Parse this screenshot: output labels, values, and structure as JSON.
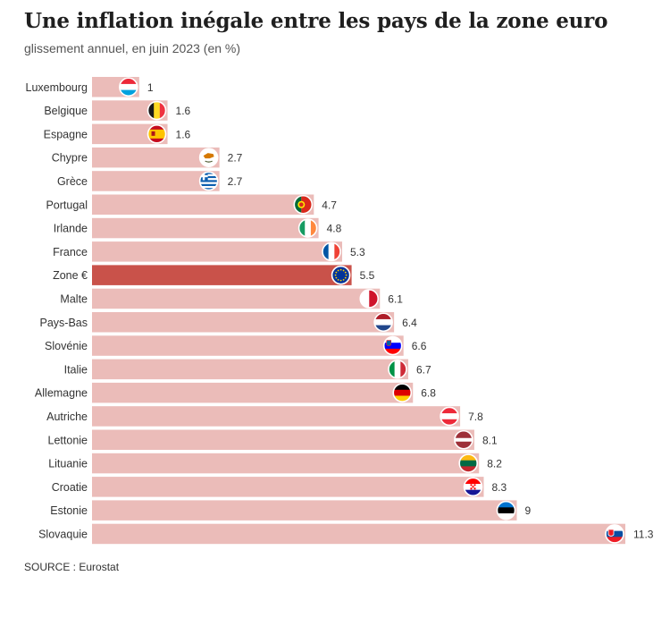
{
  "title": "Une inflation inégale entre les pays de la zone euro",
  "subtitle": "glissement annuel, en juin 2023 (en %)",
  "source": "SOURCE : Eurostat",
  "colors": {
    "bar": "#ebbcb9",
    "highlight_bar": "#c9524a",
    "text": "#333333"
  },
  "chart_data": {
    "type": "bar",
    "orientation": "horizontal",
    "title": "Une inflation inégale entre les pays de la zone euro",
    "subtitle": "glissement annuel, en juin 2023 (en %)",
    "xlim": [
      0,
      11.3
    ],
    "grid": false,
    "highlight": "Zone €",
    "categories": [
      "Luxembourg",
      "Belgique",
      "Espagne",
      "Chypre",
      "Grèce",
      "Portugal",
      "Irlande",
      "France",
      "Zone €",
      "Malte",
      "Pays-Bas",
      "Slovénie",
      "Italie",
      "Allemagne",
      "Autriche",
      "Lettonie",
      "Lituanie",
      "Croatie",
      "Estonie",
      "Slovaquie"
    ],
    "values": [
      1,
      1.6,
      1.6,
      2.7,
      2.7,
      4.7,
      4.8,
      5.3,
      5.5,
      6.1,
      6.4,
      6.6,
      6.7,
      6.8,
      7.8,
      8.1,
      8.2,
      8.3,
      9,
      11.3
    ],
    "value_labels": [
      "1",
      "1.6",
      "1.6",
      "2.7",
      "2.7",
      "4.7",
      "4.8",
      "5.3",
      "5.5",
      "6.1",
      "6.4",
      "6.6",
      "6.7",
      "6.8",
      "7.8",
      "8.1",
      "8.2",
      "8.3",
      "9",
      "11.3"
    ],
    "flags": [
      "luxembourg-flag-icon",
      "belgium-flag-icon",
      "spain-flag-icon",
      "cyprus-flag-icon",
      "greece-flag-icon",
      "portugal-flag-icon",
      "ireland-flag-icon",
      "france-flag-icon",
      "eu-flag-icon",
      "malta-flag-icon",
      "netherlands-flag-icon",
      "slovenia-flag-icon",
      "italy-flag-icon",
      "germany-flag-icon",
      "austria-flag-icon",
      "latvia-flag-icon",
      "lithuania-flag-icon",
      "croatia-flag-icon",
      "estonia-flag-icon",
      "slovakia-flag-icon"
    ]
  }
}
